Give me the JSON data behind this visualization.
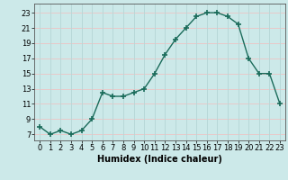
{
  "x": [
    0,
    1,
    2,
    3,
    4,
    5,
    6,
    7,
    8,
    9,
    10,
    11,
    12,
    13,
    14,
    15,
    16,
    17,
    18,
    19,
    20,
    21,
    22,
    23
  ],
  "y": [
    8,
    7,
    7.5,
    7,
    7.5,
    9,
    12.5,
    12,
    12,
    12.5,
    13,
    15,
    17.5,
    19.5,
    21,
    22.5,
    23,
    23,
    22.5,
    21.5,
    17,
    15,
    15,
    11
  ],
  "line_color": "#1a6b5a",
  "marker": "+",
  "marker_size": 4,
  "bg_color": "#cce9e9",
  "grid_color_h": "#e8c8c8",
  "grid_color_v": "#b8d8d8",
  "xlabel": "Humidex (Indice chaleur)",
  "xlabel_fontsize": 7,
  "ylabel_ticks": [
    7,
    9,
    11,
    13,
    15,
    17,
    19,
    21,
    23
  ],
  "xtick_labels": [
    "0",
    "1",
    "2",
    "3",
    "4",
    "5",
    "6",
    "7",
    "8",
    "9",
    "10",
    "11",
    "12",
    "13",
    "14",
    "15",
    "16",
    "17",
    "18",
    "19",
    "20",
    "21",
    "22",
    "23"
  ],
  "ylim": [
    6.2,
    24.2
  ],
  "xlim": [
    -0.5,
    23.5
  ],
  "tick_fontsize": 6
}
